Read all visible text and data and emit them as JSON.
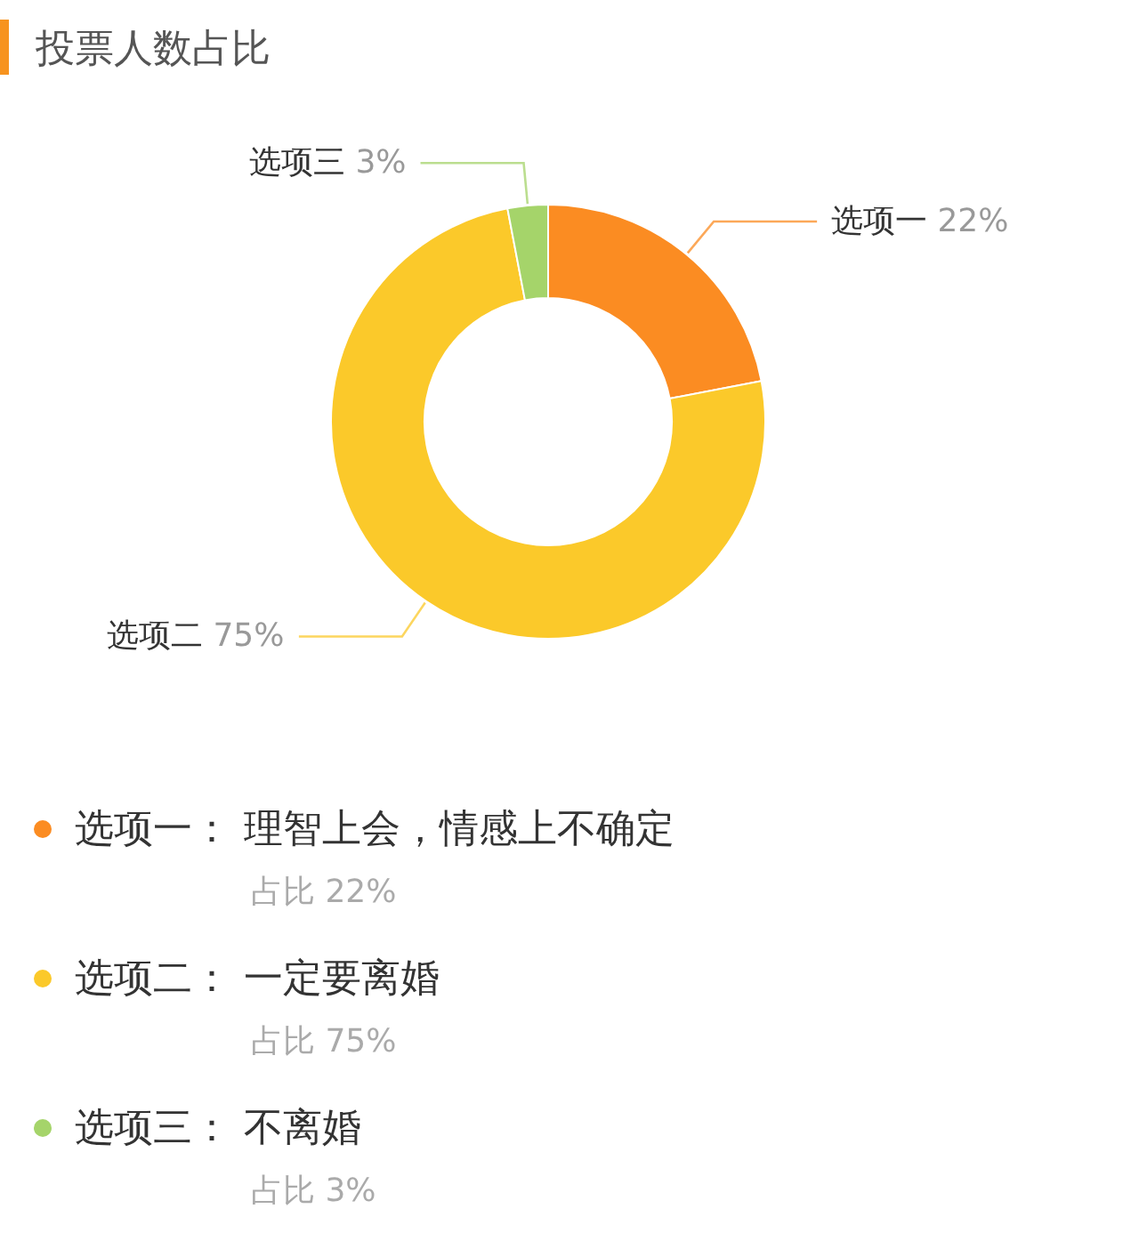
{
  "chart_data": {
    "type": "donut",
    "title": "投票人数占比",
    "categories": [
      "选项一",
      "选项二",
      "选项三"
    ],
    "values": [
      22,
      75,
      3
    ],
    "colors": [
      "#fb8c22",
      "#fbc92a",
      "#a5d46a"
    ],
    "value_labels": [
      "22%",
      "75%",
      "3%"
    ],
    "legend": "bottom",
    "annotations": [
      "： 理智上会，情感上不确定",
      "占比 22%",
      "： 一定要离婚",
      "占比 75%",
      "： 不离婚",
      "占比 3%"
    ]
  }
}
